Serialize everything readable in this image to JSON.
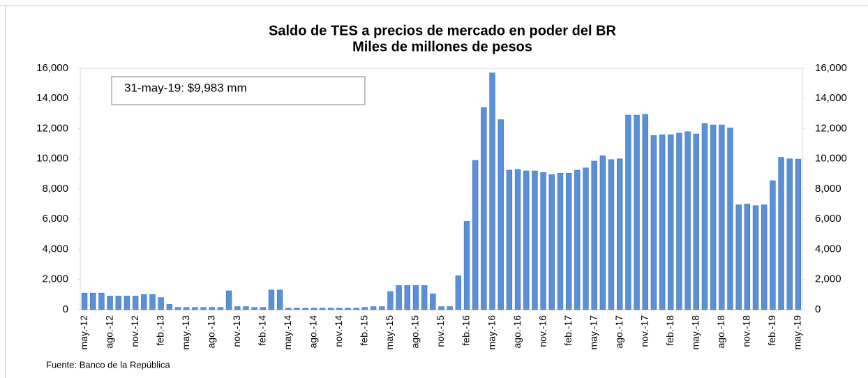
{
  "chart_data": {
    "type": "bar",
    "title": "Saldo de TES a precios de mercado en poder del BR",
    "subtitle": "Miles de millones de pesos",
    "annotation": "31-may-19:  $9,983 mm",
    "source": "Fuente:  Banco de la República",
    "categories": [
      "may.-12",
      null,
      null,
      "ago.-12",
      null,
      null,
      "nov.-12",
      null,
      null,
      "feb.-13",
      null,
      null,
      "may.-13",
      null,
      null,
      "ago.-13",
      null,
      null,
      "nov.-13",
      null,
      null,
      "feb.-14",
      null,
      null,
      "may.-14",
      null,
      null,
      "ago.-14",
      null,
      null,
      "nov.-14",
      null,
      null,
      "feb.-15",
      null,
      null,
      "may.-15",
      null,
      null,
      "ago.-15",
      null,
      null,
      "nov.-15",
      null,
      null,
      "feb.-16",
      null,
      null,
      "may.-16",
      null,
      null,
      "ago.-16",
      null,
      null,
      "nov.-16",
      null,
      null,
      "feb.-17",
      null,
      null,
      "may.-17",
      null,
      null,
      "ago.-17",
      null,
      null,
      "nov.-17",
      null,
      null,
      "feb.-18",
      null,
      null,
      "may.-18",
      null,
      null,
      "ago.-18",
      null,
      null,
      "nov.-18",
      null,
      null,
      "feb.-19",
      null,
      null,
      "may.-19"
    ],
    "values": [
      1100,
      1100,
      1100,
      900,
      900,
      900,
      900,
      1000,
      1000,
      800,
      350,
      150,
      150,
      150,
      150,
      150,
      150,
      1250,
      200,
      200,
      150,
      150,
      1300,
      1300,
      100,
      100,
      100,
      100,
      100,
      100,
      100,
      100,
      100,
      150,
      200,
      200,
      1200,
      1600,
      1600,
      1600,
      1600,
      1050,
      200,
      200,
      2250,
      5850,
      9900,
      13400,
      15700,
      12600,
      9250,
      9300,
      9200,
      9200,
      9100,
      8950,
      9050,
      9050,
      9250,
      9400,
      9850,
      10200,
      9950,
      10000,
      12900,
      12900,
      12950,
      11550,
      11600,
      11600,
      11700,
      11800,
      11650,
      12350,
      12250,
      12250,
      12050,
      6950,
      7000,
      6900,
      6950,
      8550,
      10100,
      10000,
      9983
    ],
    "color": "#5b8fd6",
    "ylim": [
      0,
      16000
    ],
    "yticks": [
      0,
      {
        "value": 2000,
        "label": "2,000"
      },
      {
        "value": 4000,
        "label": "4,000"
      },
      {
        "value": 6000,
        "label": "6,000"
      },
      {
        "value": 8000,
        "label": "8,000"
      },
      {
        "value": 10000,
        "label": "10,000"
      },
      {
        "value": 12000,
        "label": "12,000"
      },
      {
        "value": 14000,
        "label": "14,000"
      },
      {
        "value": 16000,
        "label": "16,000"
      }
    ],
    "y2lim": [
      0,
      16000
    ],
    "y2ticks": [
      0,
      {
        "value": 2000,
        "label": "2,000"
      },
      {
        "value": 4000,
        "label": "4,000"
      },
      {
        "value": 6000,
        "label": "6,000"
      },
      {
        "value": 8000,
        "label": "8,000"
      },
      {
        "value": 10000,
        "label": "10,000"
      },
      {
        "value": 12000,
        "label": "12,000"
      },
      {
        "value": 14000,
        "label": "14,000"
      },
      {
        "value": 16000,
        "label": "16,000"
      }
    ],
    "grid": false
  }
}
